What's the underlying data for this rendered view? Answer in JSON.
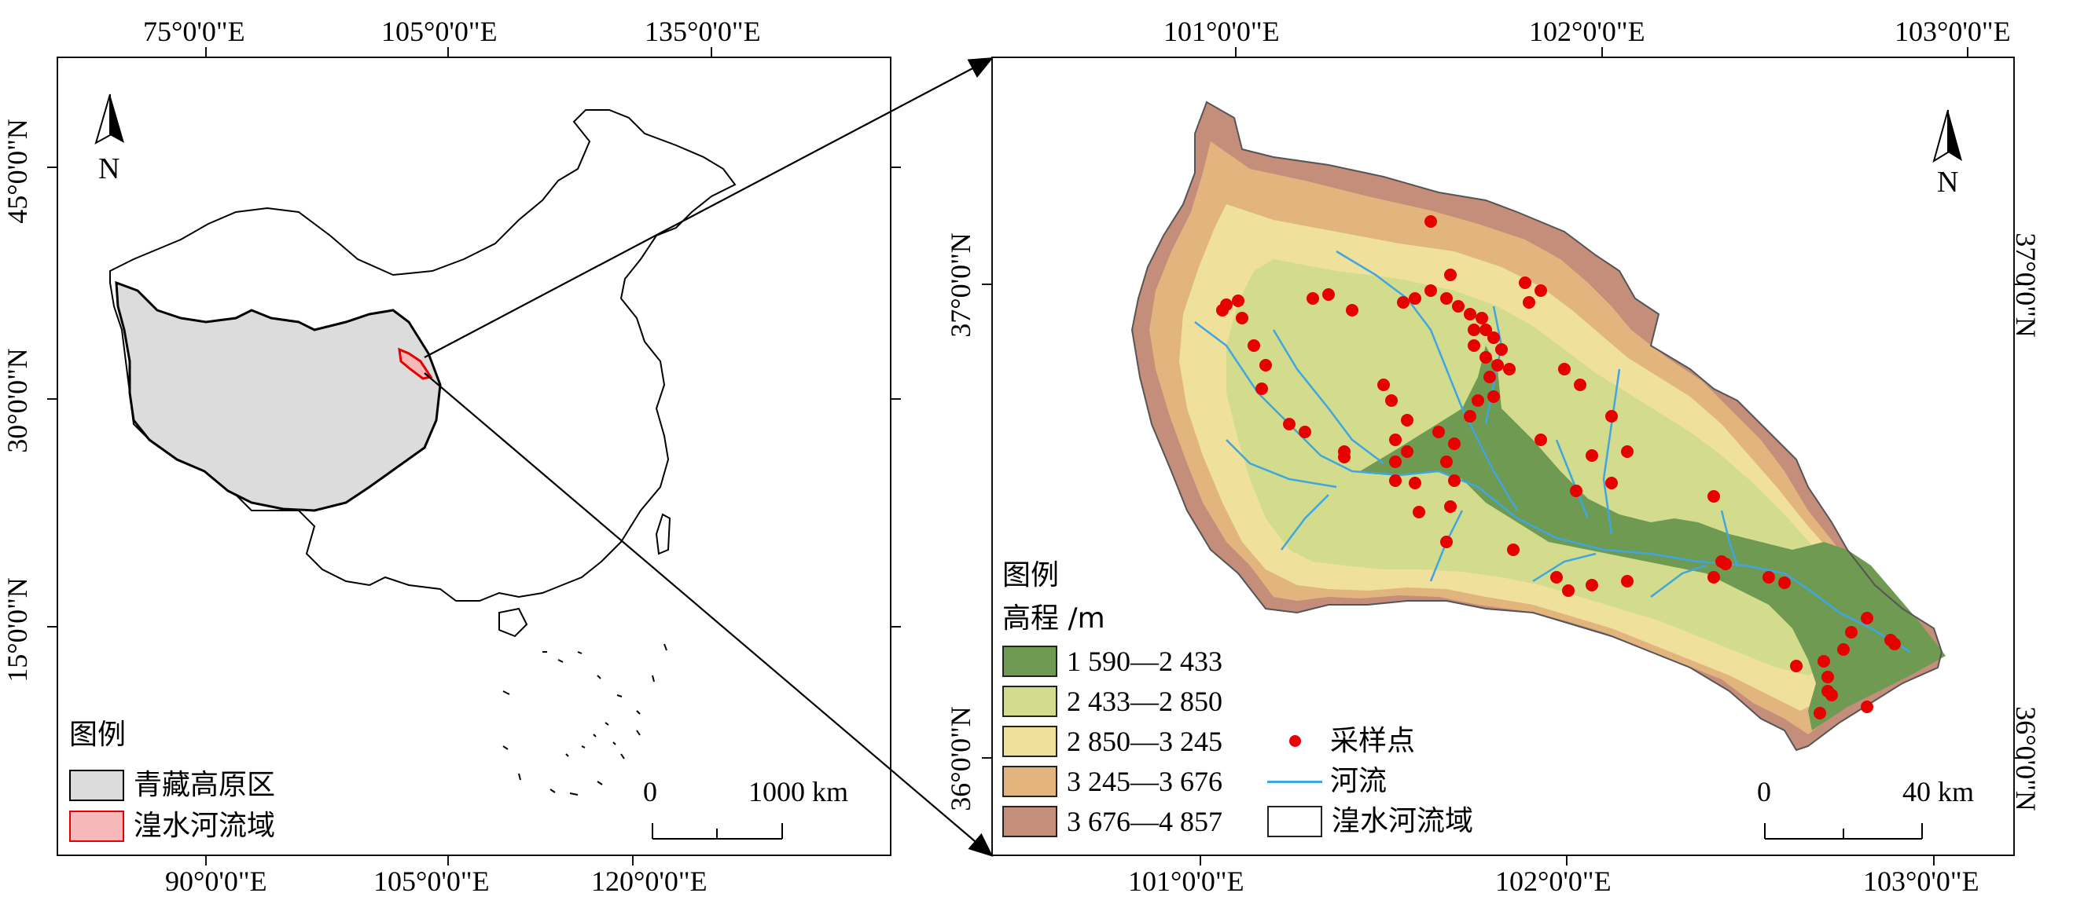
{
  "left_map": {
    "top_ticks": [
      "75°0'0\"E",
      "105°0'0\"E",
      "135°0'0\"E"
    ],
    "bottom_ticks": [
      "90°0'0\"E",
      "105°0'0\"E",
      "120°0'0\"E"
    ],
    "left_ticks": [
      "45°0'0\"N",
      "30°0'0\"N",
      "15°0'0\"N"
    ],
    "north_label": "N",
    "legend": {
      "title": "图例",
      "items": [
        {
          "label": "青藏高原区",
          "color": "#dcdcdc",
          "border": "#000000"
        },
        {
          "label": "湟水河流域",
          "color": "#f6b8b8",
          "border": "#e60000"
        }
      ]
    },
    "scale": {
      "zero": "0",
      "max": "1000 km"
    }
  },
  "right_map": {
    "top_ticks": [
      "101°0'0\"E",
      "102°0'0\"E",
      "103°0'0\"E"
    ],
    "bottom_ticks": [
      "101°0'0\"E",
      "102°0'0\"E",
      "103°0'0\"E"
    ],
    "left_ticks": [
      "37°0'0\"N",
      "36°0'0\"N"
    ],
    "right_ticks": [
      "37°0'0\"N",
      "36°0'0\"N"
    ],
    "north_label": "N",
    "legend": {
      "title": "图例",
      "subtitle": "高程 /m",
      "elevation_classes": [
        {
          "label": "1 590—2 433",
          "color": "#6e9a52"
        },
        {
          "label": "2 433—2 850",
          "color": "#d2dc8c"
        },
        {
          "label": "2 850—3 245",
          "color": "#efe09c"
        },
        {
          "label": "3 245—3 676",
          "color": "#e2b47e"
        },
        {
          "label": "3 676—4 857",
          "color": "#c48e7a"
        }
      ],
      "symbols": [
        {
          "label": "采样点",
          "color": "#e60000"
        },
        {
          "label": "河流",
          "color": "#3fa6e0"
        },
        {
          "label": "湟水河流域",
          "color": "#ffffff"
        }
      ]
    },
    "scale": {
      "zero": "0",
      "max": "40 km"
    }
  }
}
